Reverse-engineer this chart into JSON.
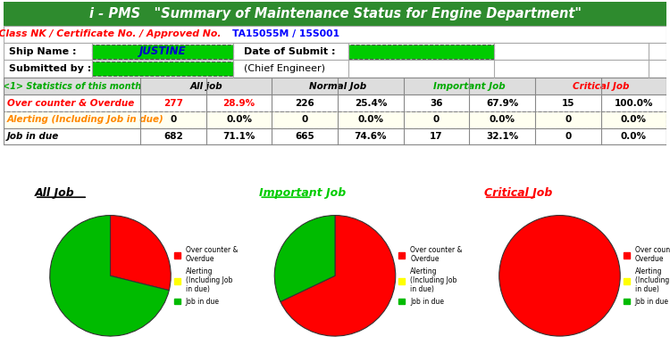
{
  "title": "i - PMS   \"Summary of Maintenance Status for Engine Department\"",
  "title_bg": "#2e8b2e",
  "title_fg": "white",
  "approved_text_red": "Approved by Class NK / Certificate No. / Approved No.  ",
  "approved_link": "TA15055M / 15S001",
  "ship_name": "JUSTINE",
  "date_label": "Date of Submit :",
  "submitted_label": "Submitted by :",
  "chief_engineer": "(Chief Engineer)",
  "stats_label": "<1> Statistics of this month",
  "col_headers": [
    "All job",
    "Normal Job",
    "Important Job",
    "Critical Job"
  ],
  "col_header_colors": [
    "black",
    "black",
    "#00aa00",
    "red"
  ],
  "row_labels": [
    "Over counter & Overdue",
    "Alerting (Including Job in due)",
    "Job in due"
  ],
  "row_label_colors": [
    "red",
    "#ff8800",
    "black"
  ],
  "table_data": [
    [
      277,
      "28.9%",
      226,
      "25.4%",
      36,
      "67.9%",
      15,
      "100.0%"
    ],
    [
      0,
      "0.0%",
      0,
      "0.0%",
      0,
      "0.0%",
      0,
      "0.0%"
    ],
    [
      682,
      "71.1%",
      665,
      "74.6%",
      17,
      "32.1%",
      0,
      "0.0%"
    ]
  ],
  "row_num_colors": [
    [
      "red",
      "red",
      "black",
      "black",
      "black",
      "black",
      "black",
      "black"
    ],
    [
      "black",
      "black",
      "black",
      "black",
      "black",
      "black",
      "black",
      "black"
    ],
    [
      "black",
      "black",
      "black",
      "black",
      "black",
      "black",
      "black",
      "black"
    ]
  ],
  "pie_titles": [
    "All Job",
    "Important Job",
    "Critical Job"
  ],
  "pie_title_colors": [
    "black",
    "#00cc00",
    "red"
  ],
  "pie_values": [
    [
      277,
      0,
      682
    ],
    [
      36,
      0,
      17
    ],
    [
      15,
      0,
      0
    ]
  ],
  "pie_slice_colors": [
    "red",
    "yellow",
    "#00bb00"
  ],
  "legend_labels": [
    "Over counter &\nOverdue",
    "Alerting\n(Including Job\nin due)",
    "Job in due"
  ],
  "green_box_color": "#00cc00",
  "table_border": "#888888",
  "bg_color": "white"
}
